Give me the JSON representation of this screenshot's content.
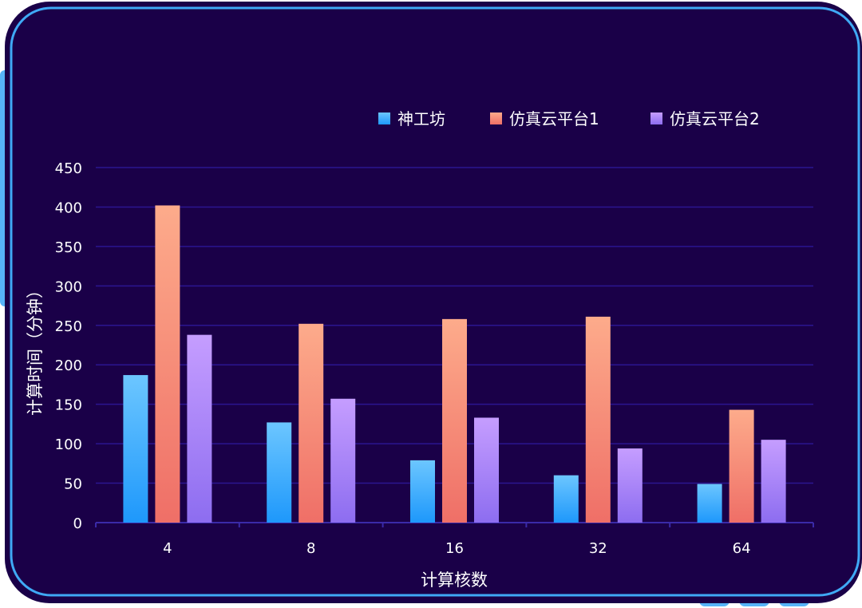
{
  "colors": {
    "panel_bg": "#1a0048",
    "panel_border": "#3fa9f5",
    "gridline": "#2b1590",
    "axis": "#3a2aa8",
    "text": "#ffffff",
    "series": [
      {
        "top": "#6cc6ff",
        "bottom": "#1e98fb"
      },
      {
        "top": "#fdab8b",
        "bottom": "#ef6f67"
      },
      {
        "top": "#c59dff",
        "bottom": "#8d6df0"
      }
    ]
  },
  "chart_data": {
    "type": "bar",
    "xlabel": "计算核数",
    "ylabel": "计算时间（分钟）",
    "ylim": [
      0,
      450
    ],
    "yticks": [
      0,
      50,
      100,
      150,
      200,
      250,
      300,
      350,
      400,
      450
    ],
    "grid": true,
    "legend_position": "top-right",
    "categories": [
      "4",
      "8",
      "16",
      "32",
      "64"
    ],
    "series": [
      {
        "name": "神工坊",
        "values": [
          187,
          127,
          79,
          60,
          49
        ]
      },
      {
        "name": "仿真云平台1",
        "values": [
          402,
          252,
          258,
          261,
          143
        ]
      },
      {
        "name": "仿真云平台2",
        "values": [
          238,
          157,
          133,
          94,
          105
        ]
      }
    ]
  }
}
